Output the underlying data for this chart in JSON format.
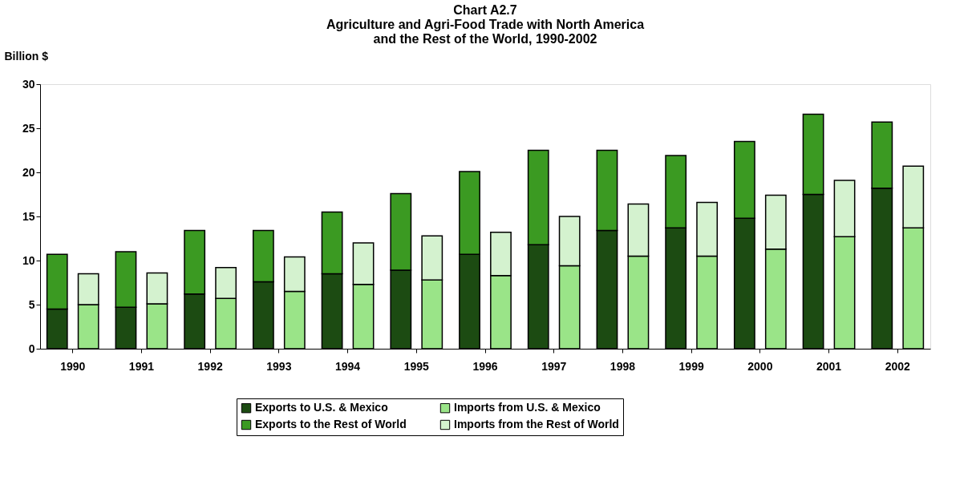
{
  "chart_data": {
    "type": "bar",
    "title": [
      "Chart A2.7",
      "Agriculture and Agri-Food Trade with North America",
      "and the Rest of the World, 1990-2002"
    ],
    "ylabel": "Billion $",
    "categories": [
      "1990",
      "1991",
      "1992",
      "1993",
      "1994",
      "1995",
      "1996",
      "1997",
      "1998",
      "1999",
      "2000",
      "2001",
      "2002"
    ],
    "ylim": [
      0,
      30
    ],
    "yticks": [
      0,
      5,
      10,
      15,
      20,
      25,
      30
    ],
    "grid": false,
    "legend": "bottom",
    "series": [
      {
        "name": "Exports to U.S. & Mexico",
        "color": "#1c4b12",
        "base": [
          0,
          0,
          0,
          0,
          0,
          0,
          0,
          0,
          0,
          0,
          0,
          0,
          0
        ],
        "values": [
          4.5,
          4.7,
          6.2,
          7.6,
          8.5,
          8.9,
          10.7,
          11.8,
          13.4,
          13.7,
          14.8,
          17.5,
          18.2
        ]
      },
      {
        "name": "Exports to the Rest of World",
        "color": "#3b9a22",
        "base": [
          4.5,
          4.7,
          6.2,
          7.6,
          8.5,
          8.9,
          10.7,
          11.8,
          13.4,
          13.7,
          14.8,
          17.5,
          18.2
        ],
        "values": [
          6.2,
          6.3,
          7.2,
          5.8,
          7.0,
          8.7,
          9.4,
          10.7,
          9.1,
          8.2,
          8.7,
          9.1,
          7.5
        ]
      },
      {
        "name": "Imports from U.S. & Mexico",
        "color": "#9ae488",
        "base": [
          0,
          0,
          0,
          0,
          0,
          0,
          0,
          0,
          0,
          0,
          0,
          0,
          0
        ],
        "values": [
          5.0,
          5.1,
          5.7,
          6.5,
          7.3,
          7.8,
          8.3,
          9.4,
          10.5,
          10.5,
          11.3,
          12.7,
          13.7
        ]
      },
      {
        "name": "Imports from the Rest of World",
        "color": "#d4f2cf",
        "base": [
          5.0,
          5.1,
          5.7,
          6.5,
          7.3,
          7.8,
          8.3,
          9.4,
          10.5,
          10.5,
          11.3,
          12.7,
          13.7
        ],
        "values": [
          3.5,
          3.5,
          3.5,
          3.9,
          4.7,
          5.0,
          4.9,
          5.6,
          5.9,
          6.1,
          6.1,
          6.4,
          7.0
        ]
      }
    ]
  }
}
